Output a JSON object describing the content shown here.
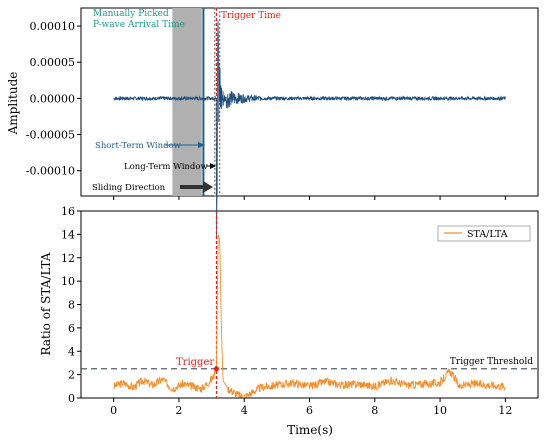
{
  "chart_data": [
    {
      "type": "line",
      "title": "",
      "xlabel": "",
      "ylabel": "Amplitude",
      "xlim": [
        -1,
        13
      ],
      "ylim": [
        -0.000135,
        0.000125
      ],
      "grid": false,
      "yticks": [
        0.0001,
        5e-05,
        0.0,
        -5e-05,
        -0.0001
      ],
      "ytick_labels": [
        "0.00010",
        "0.00005",
        "0.00000",
        "-0.00005",
        "-0.00010"
      ],
      "series": [
        {
          "name": "",
          "color": "#1f4e79",
          "description_points": {
            "x": [
              0,
              1,
              2,
              2.5,
              3.0,
              3.1,
              3.15,
              3.2,
              3.25,
              3.3,
              3.35,
              3.4,
              3.5,
              3.6,
              3.8,
              4.0,
              4.5,
              5,
              6,
              7,
              8,
              9,
              10,
              11,
              12
            ],
            "y": [
              0,
              2e-06,
              -2e-06,
              2e-06,
              -3e-06,
              4e-06,
              -1.2e-05,
              0.000115,
              -0.000125,
              8e-05,
              -6e-05,
              3e-05,
              -2e-05,
              1.2e-05,
              -8e-06,
              5e-06,
              -4e-06,
              3e-06,
              -2e-06,
              2e-06,
              -2e-06,
              2e-06,
              -2e-06,
              2e-06,
              0
            ]
          }
        }
      ],
      "annotations": {
        "manual_pick_line1": "Manually Picked",
        "manual_pick_line2": "P-wave Arrival Time",
        "trigger_time": "Trigger Time",
        "short_term_window": "Short-Term Window",
        "long_term_window": "Long-Term Window",
        "sliding_direction": "Sliding Direction"
      },
      "long_term_window_x": [
        1.8,
        2.7
      ],
      "short_term_window_x": [
        3.1,
        3.25
      ],
      "manual_pick_x": 2.75,
      "trigger_x": 3.15
    },
    {
      "type": "line",
      "title": "",
      "xlabel": "Time(s)",
      "ylabel": "Ratio of STA/LTA",
      "xlim": [
        -1,
        13
      ],
      "ylim": [
        0,
        16
      ],
      "grid": false,
      "xticks": [
        0,
        2,
        4,
        6,
        8,
        10,
        12
      ],
      "yticks": [
        0,
        2,
        4,
        6,
        8,
        10,
        12,
        14,
        16
      ],
      "legend": "top-right",
      "series": [
        {
          "name": "STA/LTA",
          "color": "#f28e2b",
          "x": [
            0,
            0.3,
            0.6,
            0.9,
            1.2,
            1.5,
            1.8,
            2.1,
            2.4,
            2.7,
            2.9,
            3.05,
            3.15,
            3.2,
            3.25,
            3.3,
            3.35,
            3.5,
            3.8,
            4.0,
            4.2,
            4.5,
            5.0,
            5.5,
            6.0,
            6.5,
            7.0,
            7.5,
            8.0,
            8.5,
            9.0,
            9.5,
            10.0,
            10.3,
            10.6,
            11.0,
            11.5,
            12.0
          ],
          "y": [
            1.0,
            1.3,
            0.9,
            1.5,
            1.1,
            1.6,
            0.8,
            1.2,
            1.0,
            0.8,
            1.3,
            1.8,
            2.5,
            14.0,
            13.5,
            6.0,
            1.5,
            0.8,
            0.3,
            0.1,
            0.4,
            0.9,
            1.1,
            1.3,
            1.0,
            1.4,
            1.1,
            1.2,
            1.0,
            1.5,
            1.1,
            1.2,
            1.3,
            2.3,
            1.0,
            1.2,
            1.1,
            1.0
          ]
        }
      ],
      "trigger_threshold": 2.5,
      "trigger_point": {
        "x": 3.15,
        "y": 2.5
      },
      "annotations": {
        "trigger": "Trigger",
        "trigger_threshold": "Trigger Threshold"
      }
    }
  ],
  "colors": {
    "seismogram": "#1f4e79",
    "sta_lta": "#f28e2b",
    "trigger": "#e02020",
    "manual_pick": "#1f5f8a",
    "manual_pick_text": "#1a9a8a",
    "short_term_text": "#1f5f8a",
    "threshold": "#555e6b",
    "window_fill": "#b0b0b0"
  }
}
